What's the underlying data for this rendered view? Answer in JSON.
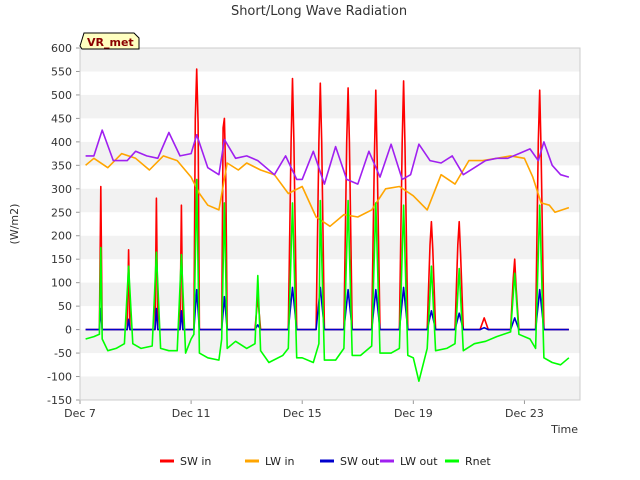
{
  "chart_data": {
    "type": "line",
    "title": "Short/Long Wave Radiation",
    "xlabel": "Time",
    "ylabel": "(W/m2)",
    "site_label": "VR_met",
    "ylim": [
      -150,
      600
    ],
    "xlim": [
      7.0,
      25.0
    ],
    "yticks": [
      -150,
      -100,
      -50,
      0,
      50,
      100,
      150,
      200,
      250,
      300,
      350,
      400,
      450,
      500,
      550,
      600
    ],
    "xticks": [
      {
        "value": 7,
        "label": "Dec 7"
      },
      {
        "value": 11,
        "label": "Dec 11"
      },
      {
        "value": 15,
        "label": "Dec 15"
      },
      {
        "value": 19,
        "label": "Dec 19"
      },
      {
        "value": 23,
        "label": "Dec 23"
      }
    ],
    "grid": "horizontal bands",
    "legend_position": "bottom",
    "day_peaks": [
      {
        "day": 7.75,
        "sw_in": 305,
        "sw_out": 45,
        "rnet": 175
      },
      {
        "day": 8.75,
        "sw_in": 170,
        "sw_out": 22,
        "rnet": 135
      },
      {
        "day": 9.75,
        "sw_in": 280,
        "sw_out": 45,
        "rnet": 165
      },
      {
        "day": 10.65,
        "sw_in": 265,
        "sw_out": 40,
        "rnet": 160
      },
      {
        "day": 11.2,
        "sw_in": 555,
        "sw_out": 85,
        "rnet": 320
      },
      {
        "day": 12.2,
        "sw_in": 450,
        "sw_out": 70,
        "rnet": 270
      },
      {
        "day": 13.4,
        "sw_in": 70,
        "sw_out": 10,
        "rnet": 115
      },
      {
        "day": 14.65,
        "sw_in": 535,
        "sw_out": 90,
        "rnet": 270
      },
      {
        "day": 15.65,
        "sw_in": 525,
        "sw_out": 90,
        "rnet": 275
      },
      {
        "day": 16.65,
        "sw_in": 515,
        "sw_out": 85,
        "rnet": 275
      },
      {
        "day": 17.65,
        "sw_in": 510,
        "sw_out": 85,
        "rnet": 270
      },
      {
        "day": 18.65,
        "sw_in": 530,
        "sw_out": 90,
        "rnet": 265
      },
      {
        "day": 19.65,
        "sw_in": 230,
        "sw_out": 40,
        "rnet": 135
      },
      {
        "day": 20.65,
        "sw_in": 230,
        "sw_out": 35,
        "rnet": 130
      },
      {
        "day": 21.55,
        "sw_in": 25,
        "sw_out": 4,
        "rnet": 10
      },
      {
        "day": 22.65,
        "sw_in": 150,
        "sw_out": 25,
        "rnet": 120
      },
      {
        "day": 23.55,
        "sw_in": 510,
        "sw_out": 85,
        "rnet": 265
      }
    ],
    "series": [
      {
        "name": "SW in",
        "color": "#ff0000",
        "x": [
          7.2,
          7.7,
          7.75,
          7.8,
          8.2,
          8.7,
          8.75,
          8.8,
          9.2,
          9.7,
          9.75,
          9.8,
          10.2,
          10.6,
          10.65,
          10.7,
          11.1,
          11.15,
          11.2,
          11.25,
          11.3,
          12.1,
          12.15,
          12.2,
          12.25,
          12.3,
          13.3,
          13.4,
          13.5,
          14.5,
          14.6,
          14.65,
          14.7,
          14.8,
          15.5,
          15.6,
          15.65,
          15.7,
          15.8,
          16.5,
          16.6,
          16.65,
          16.7,
          16.8,
          17.5,
          17.6,
          17.65,
          17.7,
          17.8,
          18.5,
          18.6,
          18.65,
          18.7,
          18.8,
          19.5,
          19.6,
          19.65,
          19.7,
          19.8,
          20.5,
          20.6,
          20.65,
          20.7,
          20.8,
          21.4,
          21.55,
          21.7,
          22.5,
          22.6,
          22.65,
          22.7,
          22.8,
          23.4,
          23.5,
          23.55,
          23.6,
          23.7,
          24.6
        ],
        "y": [
          0,
          0,
          305,
          0,
          0,
          0,
          170,
          0,
          0,
          0,
          280,
          0,
          0,
          0,
          265,
          0,
          0,
          450,
          555,
          440,
          0,
          0,
          430,
          450,
          320,
          0,
          0,
          70,
          0,
          0,
          400,
          535,
          400,
          0,
          0,
          400,
          525,
          400,
          0,
          0,
          400,
          515,
          400,
          0,
          0,
          370,
          510,
          360,
          0,
          0,
          400,
          530,
          390,
          0,
          0,
          180,
          230,
          170,
          0,
          0,
          180,
          230,
          160,
          0,
          0,
          25,
          0,
          0,
          110,
          150,
          90,
          0,
          0,
          400,
          510,
          380,
          0,
          0
        ]
      },
      {
        "name": "LW in",
        "color": "#ffa500",
        "x": [
          7.2,
          7.5,
          8.0,
          8.5,
          9.0,
          9.5,
          10.0,
          10.5,
          11.0,
          11.3,
          11.6,
          12.0,
          12.3,
          12.7,
          13.0,
          13.5,
          14.0,
          14.5,
          15.0,
          15.5,
          16.0,
          16.5,
          17.0,
          17.5,
          18.0,
          18.5,
          19.0,
          19.5,
          20.0,
          20.5,
          21.0,
          21.5,
          22.0,
          22.5,
          23.0,
          23.3,
          23.6,
          23.9,
          24.1,
          24.6
        ],
        "y": [
          350,
          365,
          345,
          375,
          365,
          340,
          370,
          360,
          325,
          290,
          265,
          255,
          355,
          340,
          355,
          340,
          330,
          290,
          305,
          240,
          220,
          245,
          240,
          255,
          300,
          305,
          285,
          255,
          330,
          310,
          360,
          360,
          365,
          370,
          365,
          325,
          270,
          265,
          250,
          260
        ]
      },
      {
        "name": "SW out",
        "color": "#0000cd",
        "x": [
          7.2,
          7.7,
          7.75,
          7.8,
          8.2,
          8.7,
          8.75,
          8.8,
          9.2,
          9.7,
          9.75,
          9.8,
          10.2,
          10.6,
          10.65,
          10.7,
          11.1,
          11.2,
          11.3,
          12.1,
          12.2,
          12.3,
          13.3,
          13.4,
          13.5,
          14.5,
          14.65,
          14.8,
          15.5,
          15.65,
          15.8,
          16.5,
          16.65,
          16.8,
          17.5,
          17.65,
          17.8,
          18.5,
          18.65,
          18.8,
          19.5,
          19.65,
          19.8,
          20.5,
          20.65,
          20.8,
          21.4,
          21.55,
          21.7,
          22.5,
          22.65,
          22.8,
          23.4,
          23.55,
          23.7,
          24.6
        ],
        "y": [
          0,
          0,
          45,
          0,
          0,
          0,
          22,
          0,
          0,
          0,
          45,
          0,
          0,
          0,
          40,
          0,
          0,
          85,
          0,
          0,
          70,
          0,
          0,
          10,
          0,
          0,
          90,
          0,
          0,
          90,
          0,
          0,
          85,
          0,
          0,
          85,
          0,
          0,
          90,
          0,
          0,
          40,
          0,
          0,
          35,
          0,
          0,
          4,
          0,
          0,
          25,
          0,
          0,
          85,
          0,
          0
        ]
      },
      {
        "name": "LW out",
        "color": "#a020f0",
        "x": [
          7.2,
          7.5,
          7.8,
          8.2,
          8.7,
          9.0,
          9.4,
          9.8,
          10.2,
          10.6,
          11.0,
          11.2,
          11.6,
          12.0,
          12.2,
          12.6,
          13.0,
          13.4,
          14.0,
          14.4,
          14.8,
          15.0,
          15.4,
          15.8,
          16.2,
          16.6,
          17.0,
          17.4,
          17.8,
          18.2,
          18.6,
          18.9,
          19.2,
          19.6,
          20.0,
          20.4,
          20.8,
          21.2,
          21.6,
          22.0,
          22.4,
          22.8,
          23.2,
          23.5,
          23.7,
          24.0,
          24.3,
          24.6
        ],
        "y": [
          370,
          370,
          425,
          360,
          360,
          380,
          370,
          365,
          420,
          370,
          375,
          415,
          345,
          330,
          405,
          365,
          370,
          360,
          330,
          370,
          320,
          320,
          380,
          310,
          390,
          320,
          310,
          380,
          325,
          395,
          320,
          330,
          395,
          360,
          355,
          370,
          330,
          345,
          360,
          365,
          365,
          375,
          385,
          360,
          400,
          350,
          330,
          325
        ]
      },
      {
        "name": "Rnet",
        "color": "#00ff00",
        "x": [
          7.2,
          7.5,
          7.7,
          7.75,
          7.8,
          8.0,
          8.3,
          8.6,
          8.75,
          8.9,
          9.2,
          9.6,
          9.75,
          9.9,
          10.2,
          10.5,
          10.65,
          10.8,
          11.0,
          11.1,
          11.2,
          11.3,
          11.6,
          12.0,
          12.1,
          12.2,
          12.3,
          12.6,
          13.0,
          13.3,
          13.4,
          13.5,
          13.8,
          14.3,
          14.5,
          14.65,
          14.8,
          15.0,
          15.4,
          15.6,
          15.65,
          15.8,
          16.2,
          16.5,
          16.65,
          16.8,
          17.1,
          17.5,
          17.65,
          17.8,
          18.2,
          18.5,
          18.65,
          18.8,
          19.0,
          19.2,
          19.5,
          19.65,
          19.8,
          20.2,
          20.5,
          20.65,
          20.8,
          21.2,
          21.6,
          22.0,
          22.5,
          22.65,
          22.8,
          23.2,
          23.4,
          23.55,
          23.7,
          24.0,
          24.3,
          24.6
        ],
        "y": [
          -20,
          -15,
          -10,
          175,
          -20,
          -45,
          -40,
          -30,
          135,
          -30,
          -40,
          -35,
          165,
          -40,
          -45,
          -45,
          160,
          -50,
          -20,
          -10,
          320,
          -50,
          -60,
          -65,
          -20,
          270,
          -40,
          -25,
          -40,
          -30,
          115,
          -45,
          -70,
          -55,
          -40,
          270,
          -60,
          -60,
          -70,
          -30,
          275,
          -65,
          -65,
          -40,
          275,
          -55,
          -55,
          -35,
          270,
          -50,
          -50,
          -40,
          265,
          -55,
          -60,
          -110,
          -40,
          135,
          -45,
          -40,
          -30,
          130,
          -45,
          -30,
          -25,
          -15,
          -5,
          120,
          -10,
          -20,
          -40,
          265,
          -60,
          -70,
          -75,
          -60
        ]
      }
    ]
  }
}
